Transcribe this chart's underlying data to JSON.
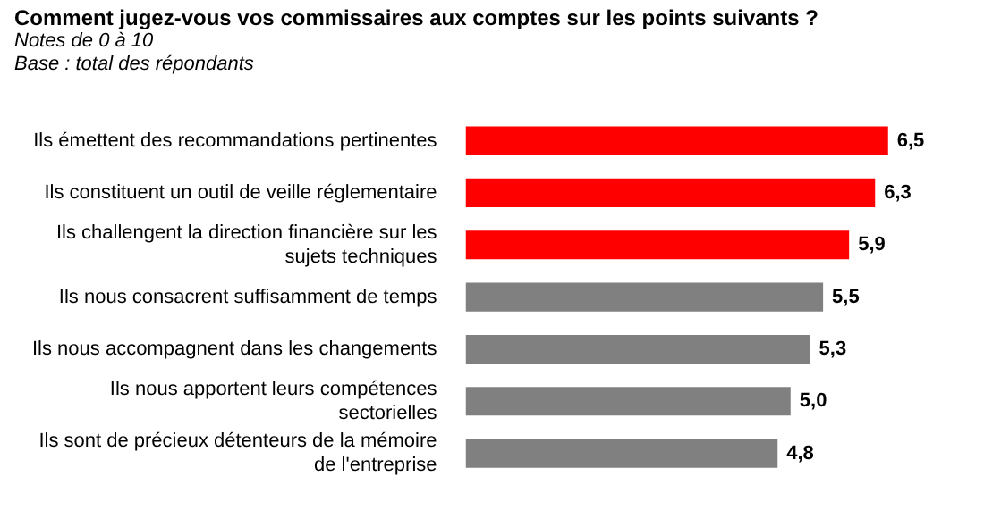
{
  "chart_data": {
    "type": "bar",
    "orientation": "horizontal",
    "title": "Comment jugez-vous vos commissaires aux comptes sur les points suivants ?",
    "subtitle": "Notes de 0 à 10",
    "annotations": [
      "Base : total des répondants"
    ],
    "categories": [
      "Ils émettent des recommandations pertinentes",
      "Ils constituent un outil de veille réglementaire",
      "Ils challengent la direction financière sur les sujets techniques",
      "Ils nous consacrent suffisamment de temps",
      "Ils nous accompagnent dans les changements",
      "Ils nous apportent leurs compétences sectorielles",
      "Ils sont de précieux détenteurs de la mémoire de l'entreprise"
    ],
    "values": [
      6.5,
      6.3,
      5.9,
      5.5,
      5.3,
      5.0,
      4.8
    ],
    "colors": [
      "#ff0000",
      "#ff0000",
      "#ff0000",
      "#808080",
      "#808080",
      "#808080",
      "#808080"
    ],
    "value_labels": [
      "6,5",
      "6,3",
      "5,9",
      "5,5",
      "5,3",
      "5,0",
      "4,8"
    ],
    "legend": false
  }
}
